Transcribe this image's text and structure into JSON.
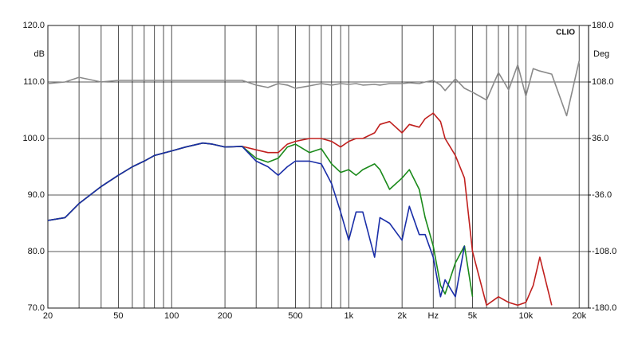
{
  "chart_data": {
    "type": "line",
    "brand": "CLIO",
    "y_label": "dB",
    "y2_label": "Deg",
    "x_log": true,
    "xlim": [
      20,
      22600
    ],
    "xticks": [
      20,
      50,
      100,
      200,
      500,
      {
        "value": 1000,
        "label": "1k"
      },
      {
        "value": 2000,
        "label": "2k"
      },
      {
        "value": 3000,
        "label": "Hz"
      },
      {
        "value": 5000,
        "label": "5k"
      },
      {
        "value": 10000,
        "label": "10k"
      },
      {
        "value": 20000,
        "label": "20k"
      }
    ],
    "x_minor_grid": [
      30,
      40,
      60,
      70,
      80,
      90,
      300,
      400,
      600,
      700,
      800,
      900,
      4000,
      6000,
      7000,
      8000,
      9000
    ],
    "ylim": [
      70,
      120
    ],
    "yticks": [
      {
        "value": 70,
        "label": "70.0"
      },
      {
        "value": 80,
        "label": "80.0"
      },
      {
        "value": 90,
        "label": "90.0"
      },
      {
        "value": 100,
        "label": "100.0"
      },
      {
        "value": 110,
        "label": "110.0"
      },
      {
        "value": 120,
        "label": "120.0"
      }
    ],
    "y2lim": [
      -180,
      180
    ],
    "y2ticks": [
      {
        "value": -180,
        "label": "-180.0"
      },
      {
        "value": -108,
        "label": "-108.0"
      },
      {
        "value": -36,
        "label": "-36.0"
      },
      {
        "value": 36,
        "label": "36.0"
      },
      {
        "value": 108,
        "label": "108.0"
      },
      {
        "value": 180,
        "label": "180.0"
      }
    ],
    "grid": true,
    "x": [
      20,
      25,
      30,
      40,
      50,
      60,
      70,
      80,
      100,
      120,
      150,
      170,
      200,
      250,
      300,
      350,
      400,
      450,
      500,
      600,
      700,
      800,
      900,
      1000,
      1100,
      1200,
      1400,
      1500,
      1700,
      2000,
      2200,
      2500,
      2700,
      3000,
      3300,
      3500,
      4000,
      4500,
      5000,
      6000,
      7000,
      8000,
      9000,
      10000,
      11000,
      12000,
      14000,
      17000,
      20000
    ],
    "series": [
      {
        "color": "#c0201e",
        "values": [
          85.5,
          86,
          88.5,
          91.5,
          93.5,
          95,
          96,
          97,
          97.8,
          98.5,
          99.2,
          99,
          98.5,
          98.6,
          98,
          97.5,
          97.5,
          99,
          99.5,
          100,
          100,
          99.5,
          98.5,
          99.5,
          100,
          100,
          101,
          102.5,
          103,
          101,
          102.5,
          102,
          103.5,
          104.5,
          103,
          100,
          97,
          93,
          80,
          70.5,
          72,
          71,
          70.5,
          71,
          74,
          79,
          70.5,
          null,
          null
        ]
      },
      {
        "color": "#1a8a1a",
        "values": [
          85.5,
          86,
          88.5,
          91.5,
          93.5,
          95,
          96,
          97,
          97.8,
          98.5,
          99.2,
          99,
          98.5,
          98.6,
          96.5,
          95.8,
          96.5,
          98.5,
          99,
          97.5,
          98.2,
          95.5,
          94,
          94.5,
          93.5,
          94.5,
          95.5,
          94.5,
          91,
          93,
          94.5,
          91,
          86,
          81,
          74,
          72.5,
          78,
          81,
          72,
          null,
          null,
          null,
          null,
          null,
          null,
          null,
          null,
          null,
          null
        ]
      },
      {
        "color": "#1a2ea8",
        "values": [
          85.5,
          86,
          88.5,
          91.5,
          93.5,
          95,
          96,
          97,
          97.8,
          98.5,
          99.2,
          99,
          98.5,
          98.6,
          96,
          95,
          93.5,
          95,
          96,
          96,
          95.5,
          92,
          87,
          82,
          87,
          87,
          79,
          86,
          85,
          82,
          88,
          83,
          83,
          79,
          72,
          75,
          72,
          81,
          null,
          null,
          null,
          null,
          null,
          null,
          null,
          null,
          null,
          null,
          null
        ]
      },
      {
        "color": "#8a8a8a",
        "axis": "y2",
        "values": [
          106,
          108,
          114,
          108,
          110,
          110,
          110,
          110,
          110,
          110,
          110,
          110,
          110,
          110,
          104,
          101,
          106,
          104,
          100,
          103,
          106,
          104,
          106,
          105,
          106,
          104,
          105,
          104,
          106,
          106,
          107,
          106,
          108,
          110,
          104,
          97,
          112,
          100,
          95,
          85,
          120,
          98,
          130,
          90,
          125,
          122,
          118,
          65,
          135
        ]
      }
    ]
  }
}
